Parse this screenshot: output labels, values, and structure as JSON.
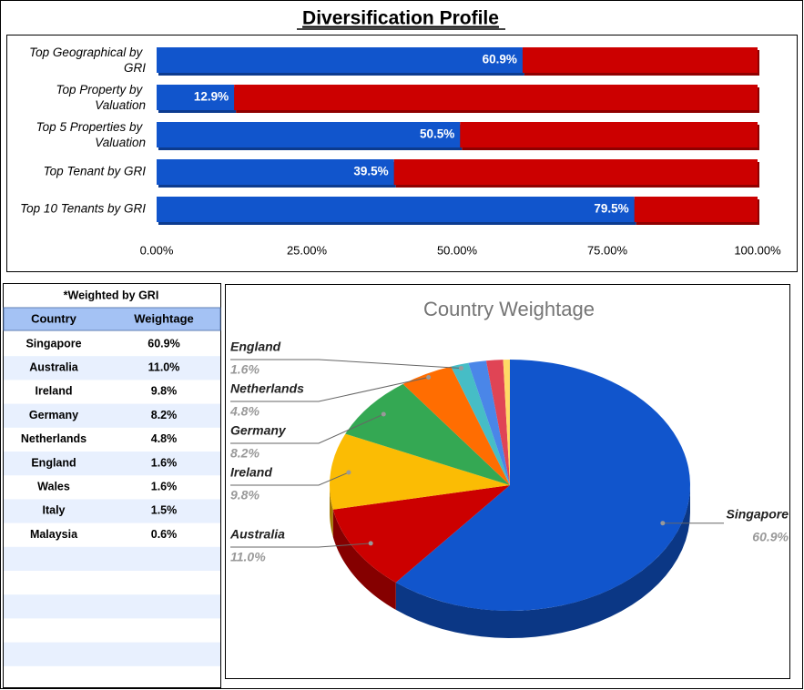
{
  "title": "Diversification Profile",
  "chart_data": [
    {
      "type": "bar",
      "orientation": "horizontal",
      "stacked": true,
      "categories": [
        "Top Geographical by GRI",
        "Top Property by Valuation",
        "Top 5 Properties by Valuation",
        "Top Tenant by GRI",
        "Top 10 Tenants by GRI"
      ],
      "series": [
        {
          "color": "#1155cc",
          "values": [
            60.9,
            12.9,
            50.5,
            39.5,
            79.5
          ],
          "value_labels": [
            "60.9%",
            "12.9%",
            "50.5%",
            "39.5%",
            "79.5%"
          ]
        },
        {
          "color": "#cc0000",
          "values": [
            39.1,
            87.1,
            49.5,
            60.5,
            20.5
          ]
        }
      ],
      "xlim": [
        0,
        100
      ],
      "xticks": [
        {
          "value": 0,
          "label": "0.00%"
        },
        {
          "value": 25,
          "label": "25.00%"
        },
        {
          "value": 50,
          "label": "50.00%"
        },
        {
          "value": 75,
          "label": "75.00%"
        },
        {
          "value": 100,
          "label": "100.00%"
        }
      ]
    },
    {
      "type": "pie",
      "three_d": true,
      "title": "Country Weightage",
      "categories": [
        "Singapore",
        "Australia",
        "Ireland",
        "Germany",
        "Netherlands",
        "England",
        null,
        null,
        null
      ],
      "values": [
        60.9,
        11.0,
        9.8,
        8.2,
        4.8,
        1.6,
        1.6,
        1.5,
        0.6
      ],
      "value_labels": [
        "60.9%",
        "11.0%",
        "9.8%",
        "8.2%",
        "4.8%",
        "1.6%",
        null,
        null,
        null
      ],
      "colors": [
        "#1155cc",
        "#cc0000",
        "#fbbc04",
        "#34a853",
        "#ff6d01",
        "#46bdc6",
        "#4a86e8",
        "#e04455",
        "#ffd966"
      ]
    }
  ],
  "table": {
    "title": "*Weighted by GRI",
    "header": [
      "Country",
      "Weightage"
    ],
    "rows": [
      [
        "Singapore",
        "60.9%"
      ],
      [
        "Australia",
        "11.0%"
      ],
      [
        "Ireland",
        "9.8%"
      ],
      [
        "Germany",
        "8.2%"
      ],
      [
        "Netherlands",
        "4.8%"
      ],
      [
        "England",
        "1.6%"
      ],
      [
        "Wales",
        "1.6%"
      ],
      [
        "Italy",
        "1.5%"
      ],
      [
        "Malaysia",
        "0.6%"
      ]
    ]
  }
}
